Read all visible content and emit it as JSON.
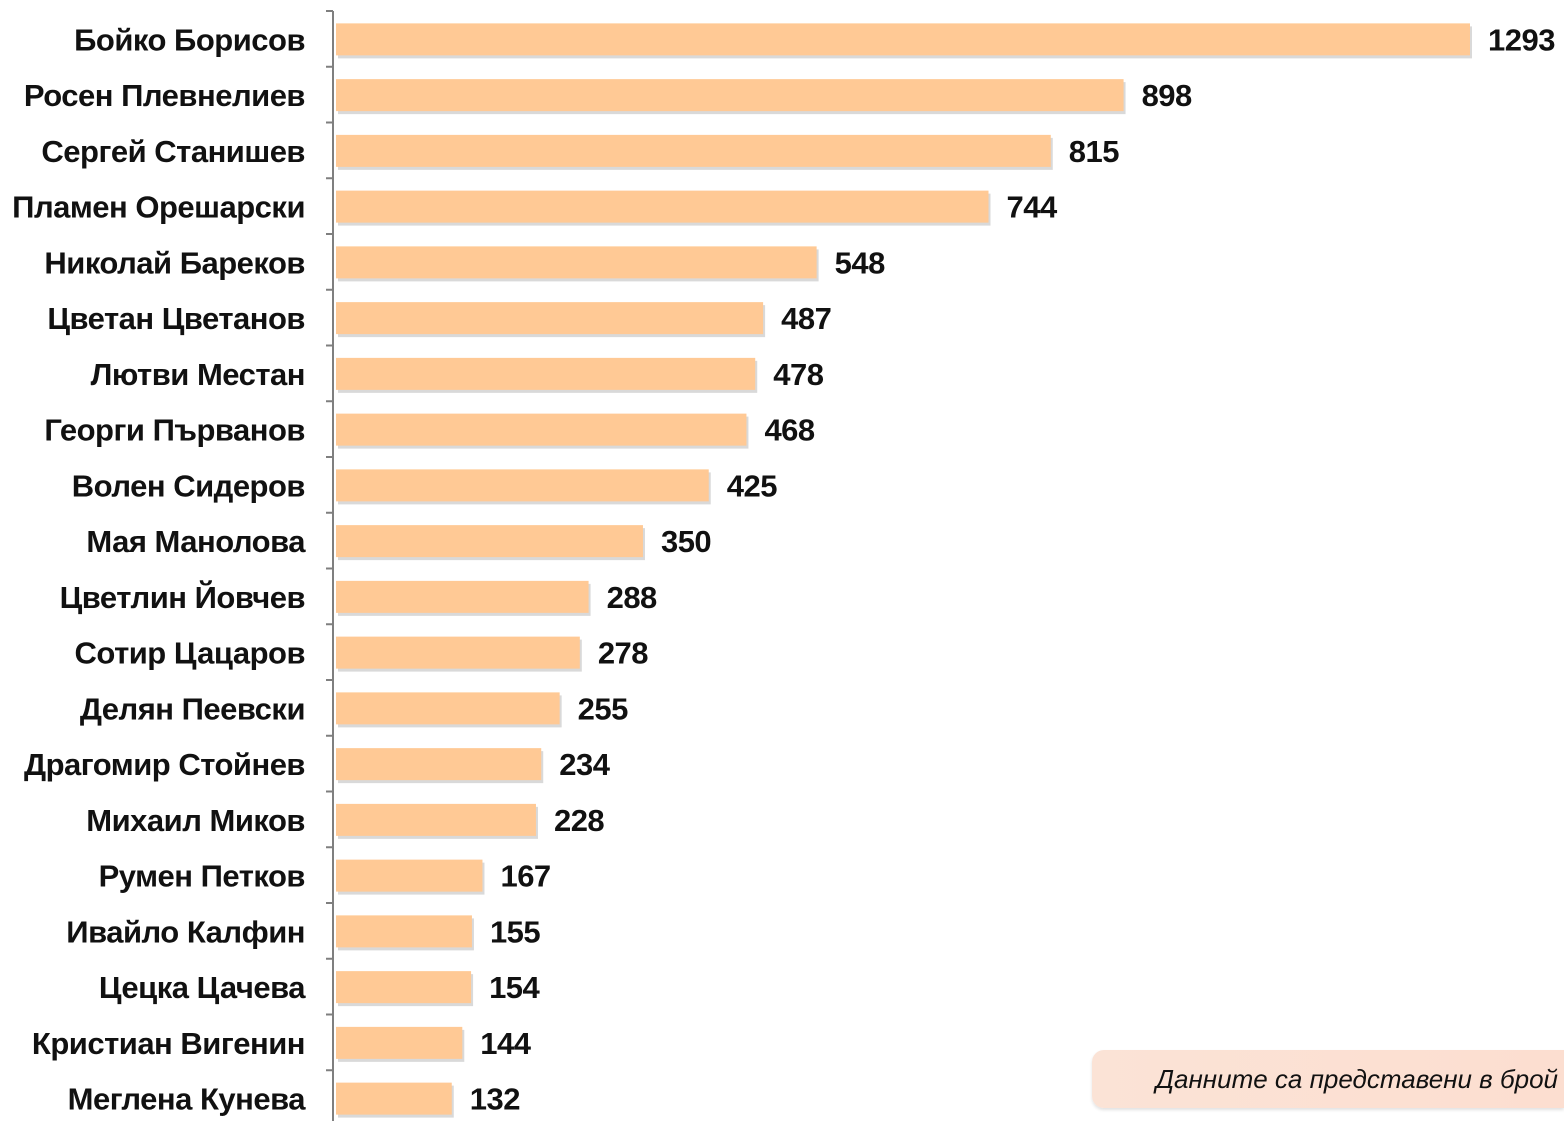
{
  "colors": {
    "bar": "#ffc995",
    "bar_shadow": "#d9d9d9",
    "axis": "#7f7f7f",
    "text": "#111111",
    "note_bg": "#fbe3d6"
  },
  "note": {
    "text": "Данните са представени в брой"
  },
  "chart_data": {
    "type": "bar",
    "orientation": "horizontal",
    "title": "",
    "xlabel": "",
    "ylabel": "",
    "xlim": [
      0,
      1293
    ],
    "grid": false,
    "legend": "none",
    "categories": [
      "Бойко Борисов",
      "Росен Плевнелиев",
      "Сергей Станишев",
      "Пламен Орешарски",
      "Николай Бареков",
      "Цветан Цветанов",
      "Лютви Местан",
      "Георги Първанов",
      "Волен Сидеров",
      "Мая Манолова",
      "Цветлин Йовчев",
      "Сотир Цацаров",
      "Делян Пеевски",
      "Драгомир Стойнев",
      "Михаил Миков",
      "Румен Петков",
      "Ивайло Калфин",
      "Цецка Цачева",
      "Кристиан Вигенин",
      "Меглена Кунева"
    ],
    "values": [
      1293,
      898,
      815,
      744,
      548,
      487,
      478,
      468,
      425,
      350,
      288,
      278,
      255,
      234,
      228,
      167,
      155,
      154,
      144,
      132
    ],
    "value_labels": [
      "1293",
      "898",
      "815",
      "744",
      "548",
      "487",
      "478",
      "468",
      "425",
      "350",
      "288",
      "278",
      "255",
      "234",
      "228",
      "167",
      "155",
      "154",
      "144",
      "132"
    ]
  }
}
